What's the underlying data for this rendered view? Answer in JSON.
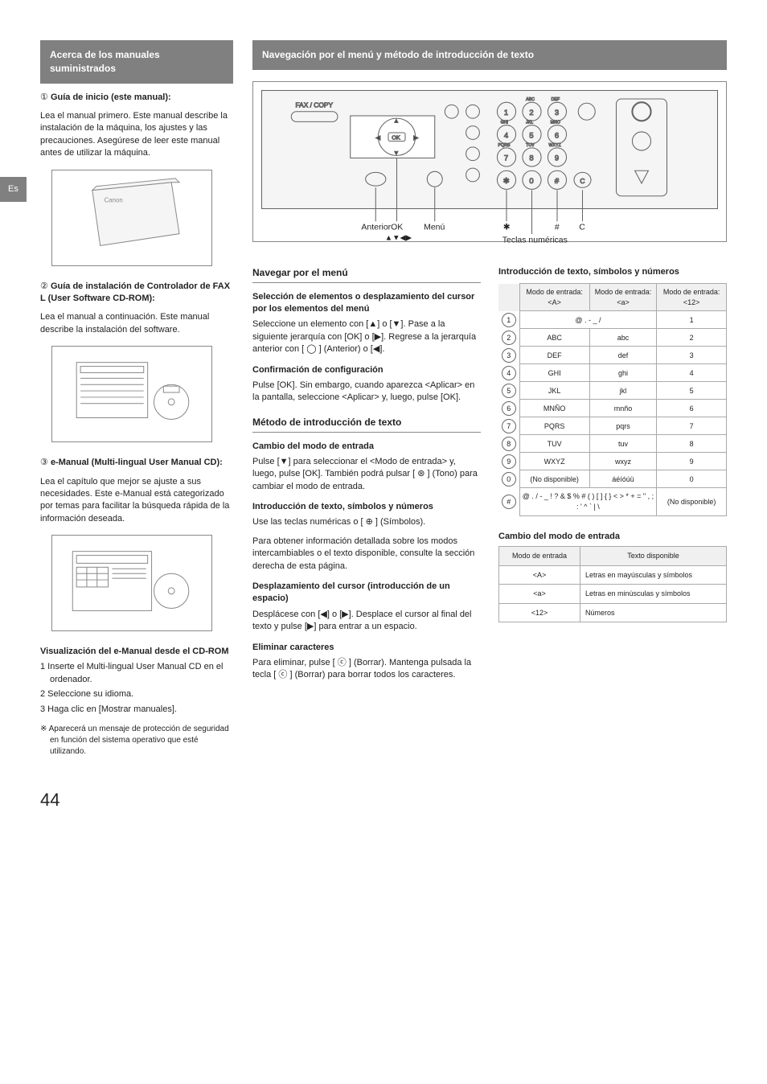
{
  "lang_tab": "Es",
  "page_number": "44",
  "sidebar": {
    "header": "Acerca de los manuales suministrados",
    "item1_num": "①",
    "item1_title": "Guía de inicio (este manual):",
    "item1_body": "Lea el manual primero. Este manual describe la instalación de la máquina, los ajustes y las precauciones. Asegúrese de leer este manual antes de utilizar la máquina.",
    "item2_num": "②",
    "item2_title": "Guía de instalación de Controlador de FAX L (User Software CD-ROM):",
    "item2_body": "Lea el manual a continuación. Este manual describe la instalación del software.",
    "item3_num": "③",
    "item3_title": "e-Manual (Multi-lingual User Manual CD):",
    "item3_body": "Lea el capítulo que mejor se ajuste a sus necesidades. Este e-Manual está categorizado por temas para facilitar la búsqueda rápida de la información deseada.",
    "viewcd_title": "Visualización del e-Manual desde el CD-ROM",
    "viewcd_steps": [
      "1 Inserte el Multi-lingual User Manual CD en el ordenador.",
      "2 Seleccione su idioma.",
      "3 Haga clic en [Mostrar manuales]."
    ],
    "viewcd_note": "※ Aparecerá un mensaje de protección de seguridad en función del sistema operativo que esté utilizando."
  },
  "main": {
    "header": "Navegación por el menú y método de introducción de texto",
    "diagram_labels": {
      "anterior": "Anterior",
      "ok": "OK",
      "menu": "Menú",
      "arrows": "▲▼◀▶",
      "star": "✱",
      "hash": "#",
      "c": "C",
      "numeric": "Teclas numéricas",
      "faxcopy": "FAX / COPY"
    },
    "nav_heading": "Navegar por el menú",
    "nav_sel_title": "Selección de elementos o desplazamiento del cursor por los elementos del menú",
    "nav_sel_body": "Seleccione un elemento con [▲] o [▼]. Pase a la siguiente jerarquía con [OK] o [▶]. Regrese a la jerarquía anterior con [ ◯ ] (Anterior) o [◀].",
    "nav_conf_title": "Confirmación de configuración",
    "nav_conf_body": "Pulse [OK]. Sin embargo, cuando aparezca <Aplicar> en la pantalla, seleccione <Aplicar> y, luego, pulse [OK].",
    "input_heading": "Método de introducción de texto",
    "input_mode_title": "Cambio del modo de entrada",
    "input_mode_body": "Pulse [▼] para seleccionar el <Modo de entrada> y, luego, pulse [OK]. También podrá pulsar [ ⊛ ] (Tono) para cambiar el modo de entrada.",
    "input_text_title": "Introducción de texto, símbolos y números",
    "input_text_body1": "Use las teclas numéricas o [ ⊕ ] (Símbolos).",
    "input_text_body2": "Para obtener información detallada sobre los modos intercambiables o el texto disponible, consulte la sección derecha de esta página.",
    "cursor_title": "Desplazamiento del cursor (introducción de un espacio)",
    "cursor_body": "Desplácese con [◀] o [▶]. Desplace el cursor al final del texto y pulse [▶] para entrar a un espacio.",
    "delete_title": "Eliminar caracteres",
    "delete_body": "Para eliminar, pulse [ ⓒ ] (Borrar). Mantenga pulsada la tecla [ ⓒ ] (Borrar) para borrar todos los caracteres.",
    "right_text_title": "Introducción de texto, símbolos y números",
    "keymap": {
      "h1": "Modo de entrada: <A>",
      "h2": "Modo de entrada: <a>",
      "h3": "Modo de entrada: <12>",
      "rows": [
        {
          "k": "1",
          "a": "@ . - _ /",
          "b": "",
          "c": "1",
          "span": true
        },
        {
          "k": "2",
          "a": "ABC",
          "b": "abc",
          "c": "2"
        },
        {
          "k": "3",
          "a": "DEF",
          "b": "def",
          "c": "3"
        },
        {
          "k": "4",
          "a": "GHI",
          "b": "ghi",
          "c": "4"
        },
        {
          "k": "5",
          "a": "JKL",
          "b": "jkl",
          "c": "5"
        },
        {
          "k": "6",
          "a": "MNÑO",
          "b": "mnño",
          "c": "6"
        },
        {
          "k": "7",
          "a": "PQRS",
          "b": "pqrs",
          "c": "7"
        },
        {
          "k": "8",
          "a": "TUV",
          "b": "tuv",
          "c": "8"
        },
        {
          "k": "9",
          "a": "WXYZ",
          "b": "wxyz",
          "c": "9"
        },
        {
          "k": "0",
          "a": "(No disponible)",
          "b": "áéíóúü",
          "c": "0"
        },
        {
          "k": "#",
          "a": "@ . / - _ ! ? & $ % # ( ) [ ] { } < > * + = \" , ; : ' ^ ` | \\",
          "b": "",
          "c": "(No disponible)",
          "span": true
        }
      ]
    },
    "mode_change_title": "Cambio del modo de entrada",
    "modetable": {
      "h1": "Modo de entrada",
      "h2": "Texto disponible",
      "rows": [
        {
          "m": "<A>",
          "t": "Letras en mayúsculas y símbolos"
        },
        {
          "m": "<a>",
          "t": "Letras en minúsculas y símbolos"
        },
        {
          "m": "<12>",
          "t": "Números"
        }
      ]
    }
  },
  "colors": {
    "header_bg": "#808080",
    "header_fg": "#ffffff",
    "border": "#aaaaaa",
    "th_bg": "#f0f0f0"
  }
}
